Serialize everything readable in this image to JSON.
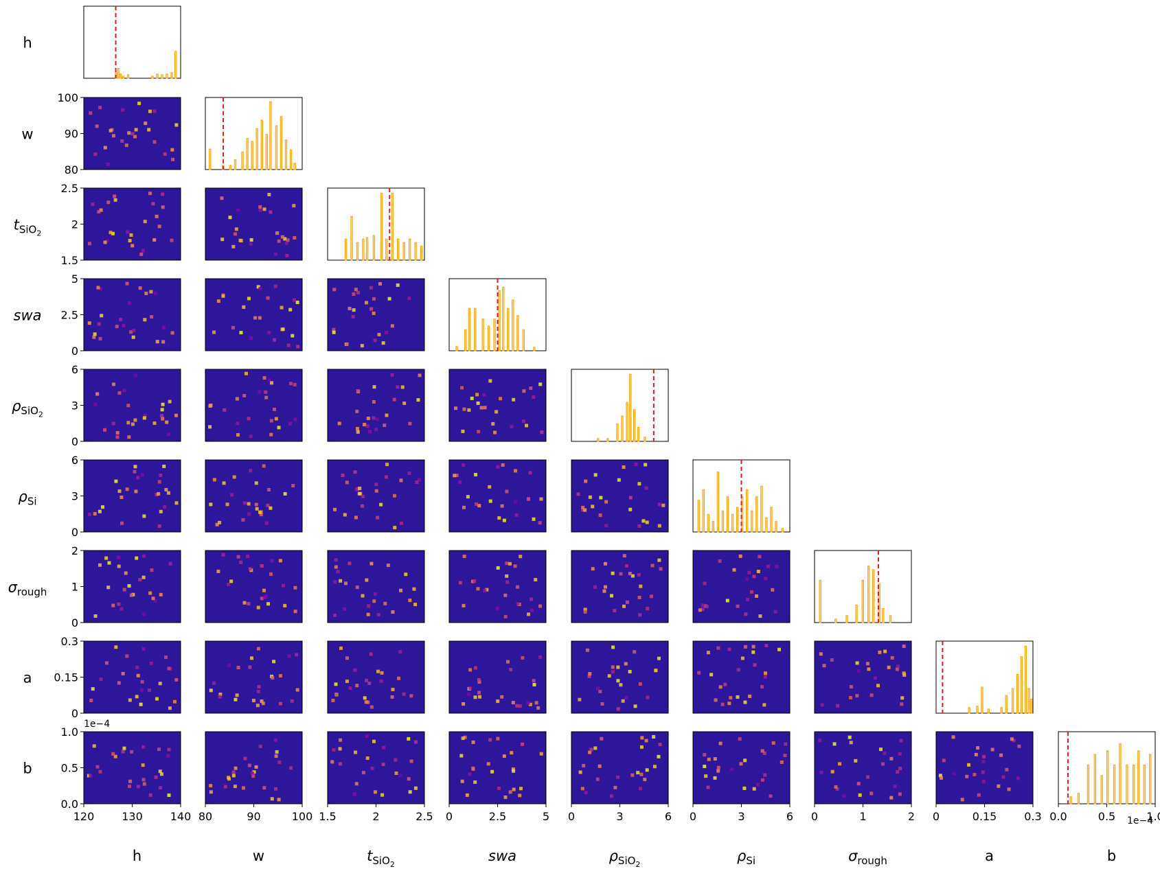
{
  "chart_data": {
    "type": "heatmap",
    "title": "",
    "layout": "corner",
    "params": [
      {
        "label": "h",
        "ylabel_html": "h",
        "range": [
          120,
          140
        ],
        "ticks": [
          120,
          130,
          140
        ],
        "tick_labels": [
          "120",
          "130",
          "140"
        ],
        "true_value": 126.6
      },
      {
        "label": "w",
        "range": [
          80,
          100
        ],
        "ticks": [
          80,
          90,
          100
        ],
        "tick_labels": [
          "80",
          "90",
          "100"
        ],
        "true_value": 83.7
      },
      {
        "label": "t",
        "label_sub": "SiO",
        "label_subsub": "2",
        "range": [
          1.5,
          2.5
        ],
        "ticks": [
          1.5,
          2,
          2.5
        ],
        "tick_labels": [
          "1.5",
          "2",
          "2.5"
        ],
        "true_value": 2.14
      },
      {
        "label": "swa",
        "italic": true,
        "range": [
          0,
          5
        ],
        "ticks": [
          0,
          2.5,
          5
        ],
        "tick_labels": [
          "0",
          "2.5",
          "5"
        ],
        "true_value": 2.5
      },
      {
        "label": "ρ",
        "label_sub": "SiO",
        "label_subsub": "2",
        "range": [
          0,
          6
        ],
        "ticks": [
          0,
          3,
          6
        ],
        "tick_labels": [
          "0",
          "3",
          "6"
        ],
        "true_value": 5.1
      },
      {
        "label": "ρ",
        "label_sub": "Si",
        "range": [
          0,
          6
        ],
        "ticks": [
          0,
          3,
          6
        ],
        "tick_labels": [
          "0",
          "3",
          "6"
        ],
        "true_value": 3.0
      },
      {
        "label": "σ",
        "label_sub": "rough",
        "range": [
          0,
          2
        ],
        "ticks": [
          0,
          1,
          2
        ],
        "tick_labels": [
          "0",
          "1",
          "2"
        ],
        "true_value": 1.32
      },
      {
        "label": "a",
        "range": [
          0,
          0.3
        ],
        "ticks": [
          0,
          0.15,
          0.3
        ],
        "tick_labels": [
          "0",
          "0.15",
          "0.3"
        ],
        "true_value": 0.02
      },
      {
        "label": "b",
        "range": [
          0,
          1.0
        ],
        "ticks": [
          0,
          0.5,
          1.0
        ],
        "tick_labels": [
          "0.0",
          "0.5",
          "1.0"
        ],
        "bottom_ticks": [
          0,
          0.5,
          1.0
        ],
        "bottom_tick_labels": [
          "0.0",
          "0.5",
          "1.0"
        ],
        "true_value": 0.1,
        "exponent": "1e−4"
      }
    ],
    "histogram_color": "#ffa500",
    "histogram_fill": "#ffd580",
    "true_line_color": "#e41a1c",
    "heatmap_background": "#2d1699",
    "colormap": "plasma",
    "histograms": [
      {
        "param": "h",
        "bins": [
          [
            126.5,
            0.08
          ],
          [
            127.0,
            0.14
          ],
          [
            127.4,
            0.06
          ],
          [
            128.0,
            0.03
          ],
          [
            129.0,
            0.05
          ],
          [
            134.0,
            0.03
          ],
          [
            135.0,
            0.06
          ],
          [
            136.0,
            0.05
          ],
          [
            137.0,
            0.06
          ],
          [
            138.0,
            0.08
          ],
          [
            138.8,
            0.38
          ]
        ]
      },
      {
        "param": "w",
        "bins": [
          [
            80.8,
            0.29
          ],
          [
            83.5,
            0.06
          ],
          [
            85,
            0.06
          ],
          [
            86.0,
            0.14
          ],
          [
            87.5,
            0.25
          ],
          [
            88.5,
            0.44
          ],
          [
            89.5,
            0.4
          ],
          [
            90.5,
            0.58
          ],
          [
            91.5,
            0.7
          ],
          [
            92.5,
            0.5
          ],
          [
            93.3,
            0.96
          ],
          [
            94.5,
            0.62
          ],
          [
            95.5,
            0.75
          ],
          [
            96.5,
            0.42
          ],
          [
            97.5,
            0.28
          ],
          [
            98.3,
            0.09
          ]
        ]
      },
      {
        "param": "t_SiO2",
        "bins": [
          [
            1.68,
            0.3
          ],
          [
            1.74,
            0.62
          ],
          [
            1.8,
            0.25
          ],
          [
            1.86,
            0.3
          ],
          [
            1.9,
            0.32
          ],
          [
            1.97,
            0.35
          ],
          [
            2.05,
            0.95
          ],
          [
            2.1,
            0.3
          ],
          [
            2.16,
            0.95
          ],
          [
            2.22,
            0.3
          ],
          [
            2.28,
            0.25
          ],
          [
            2.34,
            0.3
          ],
          [
            2.4,
            0.25
          ],
          [
            2.46,
            0.2
          ]
        ]
      },
      {
        "param": "swa",
        "bins": [
          [
            0.35,
            0.06
          ],
          [
            0.8,
            0.3
          ],
          [
            1.0,
            0.6
          ],
          [
            1.3,
            0.6
          ],
          [
            1.7,
            0.45
          ],
          [
            2.0,
            0.35
          ],
          [
            2.3,
            0.45
          ],
          [
            2.55,
            0.85
          ],
          [
            2.75,
            0.9
          ],
          [
            3.0,
            0.6
          ],
          [
            3.25,
            0.72
          ],
          [
            3.5,
            0.5
          ],
          [
            3.8,
            0.3
          ],
          [
            4.35,
            0.05
          ]
        ]
      },
      {
        "param": "rho_SiO2",
        "bins": [
          [
            1.6,
            0.04
          ],
          [
            2.2,
            0.04
          ],
          [
            2.8,
            0.25
          ],
          [
            3.1,
            0.36
          ],
          [
            3.4,
            0.55
          ],
          [
            3.6,
            0.95
          ],
          [
            3.85,
            0.45
          ],
          [
            4.1,
            0.2
          ],
          [
            4.5,
            0.06
          ]
        ]
      },
      {
        "param": "rho_Si",
        "bins": [
          [
            0.3,
            0.45
          ],
          [
            0.6,
            0.6
          ],
          [
            0.9,
            0.25
          ],
          [
            1.2,
            0.15
          ],
          [
            1.5,
            0.85
          ],
          [
            1.8,
            0.3
          ],
          [
            2.1,
            0.5
          ],
          [
            2.4,
            0.25
          ],
          [
            2.7,
            0.35
          ],
          [
            3.0,
            0.5
          ],
          [
            3.3,
            0.6
          ],
          [
            3.6,
            0.3
          ],
          [
            3.9,
            0.5
          ],
          [
            4.2,
            0.65
          ],
          [
            4.5,
            0.2
          ],
          [
            4.8,
            0.35
          ],
          [
            5.1,
            0.15
          ],
          [
            5.5,
            0.05
          ]
        ]
      },
      {
        "param": "sigma_rough",
        "bins": [
          [
            0.1,
            0.6
          ],
          [
            0.42,
            0.05
          ],
          [
            0.65,
            0.1
          ],
          [
            0.85,
            0.25
          ],
          [
            0.98,
            0.6
          ],
          [
            1.1,
            0.8
          ],
          [
            1.2,
            0.75
          ],
          [
            1.32,
            0.55
          ],
          [
            1.4,
            0.2
          ],
          [
            1.55,
            0.1
          ]
        ]
      },
      {
        "param": "a",
        "bins": [
          [
            0.1,
            0.08
          ],
          [
            0.125,
            0.1
          ],
          [
            0.14,
            0.37
          ],
          [
            0.16,
            0.06
          ],
          [
            0.2,
            0.08
          ],
          [
            0.215,
            0.25
          ],
          [
            0.235,
            0.35
          ],
          [
            0.25,
            0.55
          ],
          [
            0.262,
            0.8
          ],
          [
            0.275,
            0.95
          ],
          [
            0.285,
            0.35
          ],
          [
            0.293,
            0.2
          ]
        ]
      },
      {
        "param": "b",
        "bins": [
          [
            0.12,
            0.1
          ],
          [
            0.2,
            0.15
          ],
          [
            0.3,
            0.55
          ],
          [
            0.37,
            0.7
          ],
          [
            0.44,
            0.4
          ],
          [
            0.5,
            0.75
          ],
          [
            0.57,
            0.55
          ],
          [
            0.63,
            0.85
          ],
          [
            0.7,
            0.55
          ],
          [
            0.77,
            0.55
          ],
          [
            0.82,
            0.75
          ],
          [
            0.88,
            0.55
          ],
          [
            0.94,
            0.7
          ]
        ]
      }
    ]
  }
}
